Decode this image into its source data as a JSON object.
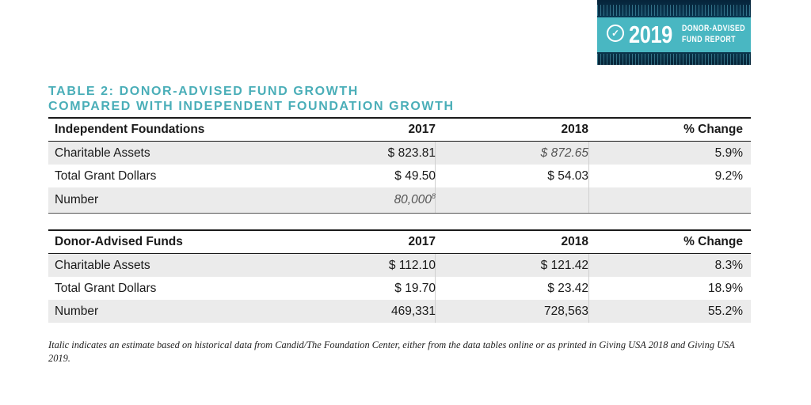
{
  "badge": {
    "year": "2019",
    "line1": "DONOR-ADVISED",
    "line2": "FUND REPORT",
    "logo_icon": "check-circle-icon"
  },
  "title": {
    "line1": "TABLE 2: DONOR-ADVISED FUND GROWTH",
    "line2": "COMPARED WITH INDEPENDENT FOUNDATION GROWTH"
  },
  "tables": [
    {
      "header": [
        "Independent Foundations",
        "2017",
        "2018",
        "% Change"
      ],
      "rows": [
        [
          "Charitable Assets",
          "$ 823.81",
          "$ 872.65",
          "5.9%"
        ],
        [
          "Total Grant Dollars",
          "$ 49.50",
          "$ 54.03",
          "9.2%"
        ],
        [
          "Number",
          "80,000",
          "",
          ""
        ]
      ],
      "footnote_mark": "8"
    },
    {
      "header": [
        "Donor-Advised Funds",
        "2017",
        "2018",
        "% Change"
      ],
      "rows": [
        [
          "Charitable Assets",
          "$ 112.10",
          "$ 121.42",
          "8.3%"
        ],
        [
          "Total Grant Dollars",
          "$ 19.70",
          "$ 23.42",
          "18.9%"
        ],
        [
          "Number",
          "469,331",
          "728,563",
          "55.2%"
        ]
      ]
    }
  ],
  "footnote": "Italic indicates an estimate based on historical data from Candid/The Foundation Center, either from the data tables online or as printed in Giving USA 2018 and Giving USA 2019.",
  "colors": {
    "title": "#4aaeb8",
    "row_shade": "#ebebeb",
    "badge_band": "#49b7c2"
  }
}
